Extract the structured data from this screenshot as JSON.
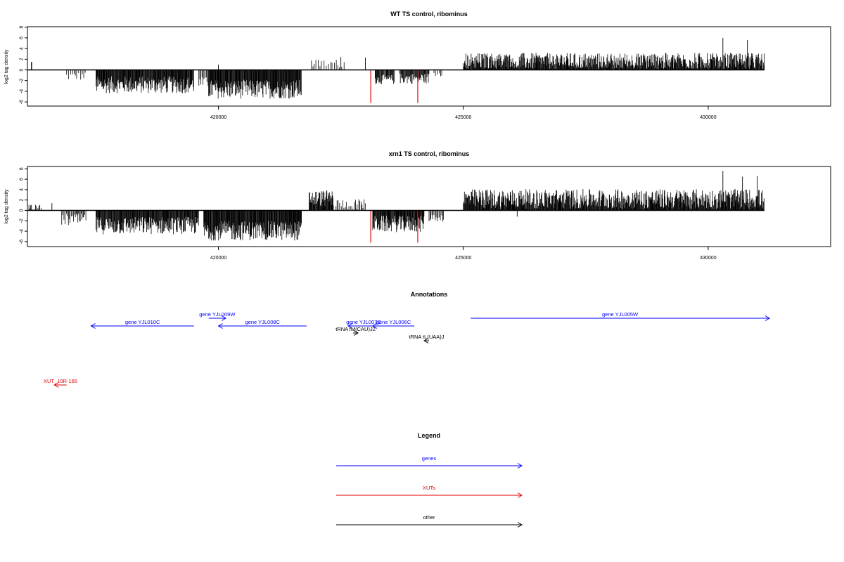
{
  "chart_data": [
    {
      "type": "bar",
      "title": "WT TS control, ribominus",
      "ylabel": "log2 tag density",
      "xlabel": "",
      "xlim": [
        416100,
        432500
      ],
      "ylim": [
        -6.5,
        8.5
      ],
      "x_ticks": [
        420000,
        425000,
        430000
      ],
      "x_tick_labels": [
        "420000",
        "425000",
        "430000"
      ],
      "y_ticks": [
        -6,
        -4,
        -2,
        0,
        2,
        4,
        6,
        8
      ],
      "y_tick_labels": [
        "-6",
        "-4",
        "-2",
        "0",
        "2",
        "4",
        "6",
        "8"
      ],
      "baseline": [
        416100,
        431150
      ],
      "segments": [
        {
          "from": 416180,
          "to": 416200,
          "mean": 1.5,
          "amp": 0,
          "density": 1
        },
        {
          "from": 416900,
          "to": 417300,
          "mean": -1.2,
          "amp": 0.8,
          "density": 0.3
        },
        {
          "from": 417500,
          "to": 419500,
          "mean": -2.8,
          "amp": 1.6,
          "density": 1
        },
        {
          "from": 419600,
          "to": 419800,
          "mean": -2.5,
          "amp": 1.2,
          "density": 0.5
        },
        {
          "from": 419800,
          "to": 421700,
          "mean": -3.6,
          "amp": 1.8,
          "density": 1
        },
        {
          "from": 421900,
          "to": 422600,
          "mean": 1.2,
          "amp": 0.8,
          "density": 0.25
        },
        {
          "from": 423200,
          "to": 423600,
          "mean": -1.8,
          "amp": 0.9,
          "density": 0.8
        },
        {
          "from": 423700,
          "to": 424300,
          "mean": -1.6,
          "amp": 1.0,
          "density": 0.8
        },
        {
          "from": 424400,
          "to": 424600,
          "mean": -0.8,
          "amp": 0.5,
          "density": 0.3
        },
        {
          "from": 425000,
          "to": 431150,
          "mean": 1.6,
          "amp": 1.6,
          "density": 1
        }
      ],
      "spikes": [
        {
          "x": 420000,
          "y": 1.0
        },
        {
          "x": 422500,
          "y": 2.4
        },
        {
          "x": 423000,
          "y": 2.3
        },
        {
          "x": 430300,
          "y": 6.0
        },
        {
          "x": 430800,
          "y": 5.6
        }
      ],
      "red_lines": [
        {
          "x": 423110,
          "y": -6.2
        },
        {
          "x": 424070,
          "y": -6.2
        }
      ],
      "colors": {
        "bars": "#000000",
        "red": "#e00000"
      }
    },
    {
      "type": "bar",
      "title": "xrn1 TS control, ribominus",
      "ylabel": "log2 tag density",
      "xlabel": "",
      "xlim": [
        416100,
        432500
      ],
      "ylim": [
        -6.5,
        8.5
      ],
      "x_ticks": [
        420000,
        425000,
        430000
      ],
      "x_tick_labels": [
        "420000",
        "425000",
        "430000"
      ],
      "y_ticks": [
        -6,
        -4,
        -2,
        0,
        2,
        4,
        6,
        8
      ],
      "y_tick_labels": [
        "-6",
        "-4",
        "-2",
        "0",
        "2",
        "4",
        "6",
        "8"
      ],
      "baseline": [
        416100,
        431150
      ],
      "segments": [
        {
          "from": 416100,
          "to": 416400,
          "mean": 0.6,
          "amp": 0.5,
          "density": 0.4
        },
        {
          "from": 416800,
          "to": 417300,
          "mean": -1.8,
          "amp": 1.2,
          "density": 0.5
        },
        {
          "from": 417500,
          "to": 419600,
          "mean": -2.9,
          "amp": 1.7,
          "density": 1
        },
        {
          "from": 419700,
          "to": 421700,
          "mean": -3.9,
          "amp": 1.9,
          "density": 1
        },
        {
          "from": 421850,
          "to": 422350,
          "mean": 2.3,
          "amp": 1.6,
          "density": 1
        },
        {
          "from": 422400,
          "to": 423000,
          "mean": 1.2,
          "amp": 1.0,
          "density": 0.4
        },
        {
          "from": 423150,
          "to": 424200,
          "mean": -2.6,
          "amp": 1.6,
          "density": 1
        },
        {
          "from": 424300,
          "to": 424600,
          "mean": -1.4,
          "amp": 0.8,
          "density": 0.5
        },
        {
          "from": 425000,
          "to": 431150,
          "mean": 2.2,
          "amp": 1.9,
          "density": 1
        }
      ],
      "spikes": [
        {
          "x": 416600,
          "y": 1.4
        },
        {
          "x": 430300,
          "y": 7.6
        },
        {
          "x": 430700,
          "y": 6.5
        },
        {
          "x": 431000,
          "y": 6.6
        },
        {
          "x": 426100,
          "y": -1.2
        }
      ],
      "red_lines": [
        {
          "x": 423110,
          "y": -6.2
        },
        {
          "x": 424070,
          "y": -6.2
        }
      ],
      "colors": {
        "bars": "#000000",
        "red": "#e00000"
      }
    }
  ],
  "annotations": {
    "title": "Annotations",
    "items": [
      {
        "label": "gene YJL010C",
        "from": 419500,
        "to": 417400,
        "row": 2,
        "color": "#0000ff"
      },
      {
        "label": "gene YJL009W",
        "from": 419800,
        "to": 420150,
        "row": 1,
        "color": "#0000ff"
      },
      {
        "label": "gene YJL008C",
        "from": 421800,
        "to": 420000,
        "row": 2,
        "color": "#0000ff"
      },
      {
        "label": "gene YJL007C",
        "from": 423280,
        "to": 422650,
        "row": 2,
        "color": "#0000ff"
      },
      {
        "label": "gene YJL006C",
        "from": 424000,
        "to": 423150,
        "row": 2,
        "color": "#0000ff"
      },
      {
        "label": "gene YJL005W",
        "from": 425150,
        "to": 431250,
        "row": 1,
        "color": "#0000ff"
      },
      {
        "label": "tRNA fM(CAU)J2",
        "from": 422750,
        "to": 422850,
        "row": 3,
        "color": "#000000"
      },
      {
        "label": "tRNA tL(UAA)J",
        "from": 424300,
        "to": 424200,
        "row": 4,
        "color": "#000000"
      },
      {
        "label": "XUT_10R-165",
        "from": 416900,
        "to": 416650,
        "row": 7,
        "color": "#e00000"
      }
    ]
  },
  "legend": {
    "title": "Legend",
    "items": [
      {
        "label": "genes",
        "color": "#0000ff"
      },
      {
        "label": "XUTs",
        "color": "#e00000"
      },
      {
        "label": "other",
        "color": "#000000"
      }
    ]
  }
}
